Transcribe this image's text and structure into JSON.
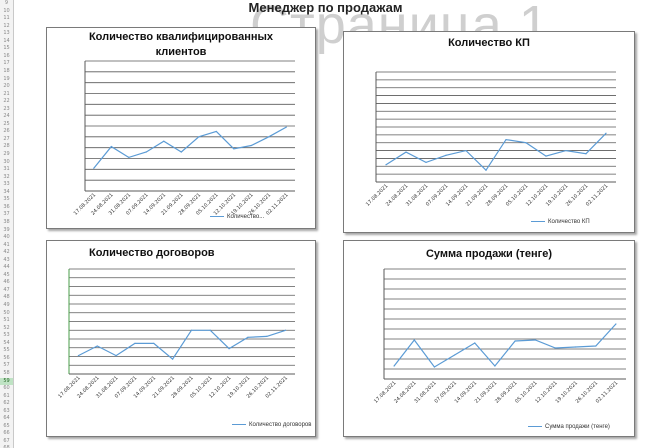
{
  "sheet": {
    "watermark": "Страница 1",
    "title": "Менеджер по продажам",
    "row_numbers_start": 9,
    "selected_row": 59,
    "colors": {
      "series": "#5b9bd5",
      "grid": "#595959",
      "axis": "#4a9e4a"
    }
  },
  "chart_data": [
    {
      "type": "line",
      "title": "Количество квалифицированных клиентов",
      "legend": "Количество...",
      "categories": [
        "17.08.2021",
        "24.08.2021",
        "31.08.2021",
        "07.09.2021",
        "14.09.2021",
        "21.09.2021",
        "28.09.2021",
        "05.10.2021",
        "12.10.2021",
        "19.10.2021",
        "26.10.2021",
        "02.11.2021"
      ],
      "values": [
        2.1,
        4.1,
        3.1,
        3.6,
        4.6,
        3.6,
        5.0,
        5.5,
        3.9,
        4.2,
        5.0,
        5.9
      ],
      "ylim": [
        0,
        12
      ],
      "grid": true
    },
    {
      "type": "line",
      "title": "Количество КП",
      "legend": "Количество КП",
      "categories": [
        "17.08.2021",
        "24.08.2021",
        "31.08.2021",
        "07.09.2021",
        "14.09.2021",
        "21.09.2021",
        "28.09.2021",
        "05.10.2021",
        "12.10.2021",
        "19.10.2021",
        "26.10.2021",
        "02.11.2021"
      ],
      "values": [
        2.2,
        3.8,
        2.5,
        3.4,
        4.0,
        1.5,
        5.4,
        5.0,
        3.3,
        4.0,
        3.6,
        6.2
      ],
      "ylim": [
        0,
        14
      ],
      "grid": true
    },
    {
      "type": "line",
      "title": "Количество договоров",
      "legend": "Количество договоров",
      "categories": [
        "17.08.2021",
        "24.08.2021",
        "31.08.2021",
        "07.09.2021",
        "14.09.2021",
        "21.09.2021",
        "28.09.2021",
        "05.10.2021",
        "12.10.2021",
        "19.10.2021",
        "26.10.2021",
        "02.11.2021"
      ],
      "values": [
        2.1,
        3.2,
        2.1,
        3.5,
        3.5,
        1.7,
        5.0,
        5.0,
        2.9,
        4.2,
        4.3,
        5.0
      ],
      "ylim": [
        0,
        12
      ],
      "grid": true
    },
    {
      "type": "line",
      "title": "Сумма продажи (тенге)",
      "legend": "Сумма продажи (тенге)",
      "categories": [
        "17.08.2021",
        "24.08.2021",
        "31.08.2021",
        "07.09.2021",
        "14.09.2021",
        "21.09.2021",
        "28.09.2021",
        "05.10.2021",
        "12.10.2021",
        "19.10.2021",
        "26.10.2021",
        "02.11.2021"
      ],
      "values": [
        1.3,
        3.9,
        1.2,
        2.4,
        3.6,
        1.3,
        3.8,
        3.9,
        3.1,
        3.2,
        3.3,
        5.5
      ],
      "ylim": [
        0,
        11
      ],
      "grid": true
    }
  ]
}
